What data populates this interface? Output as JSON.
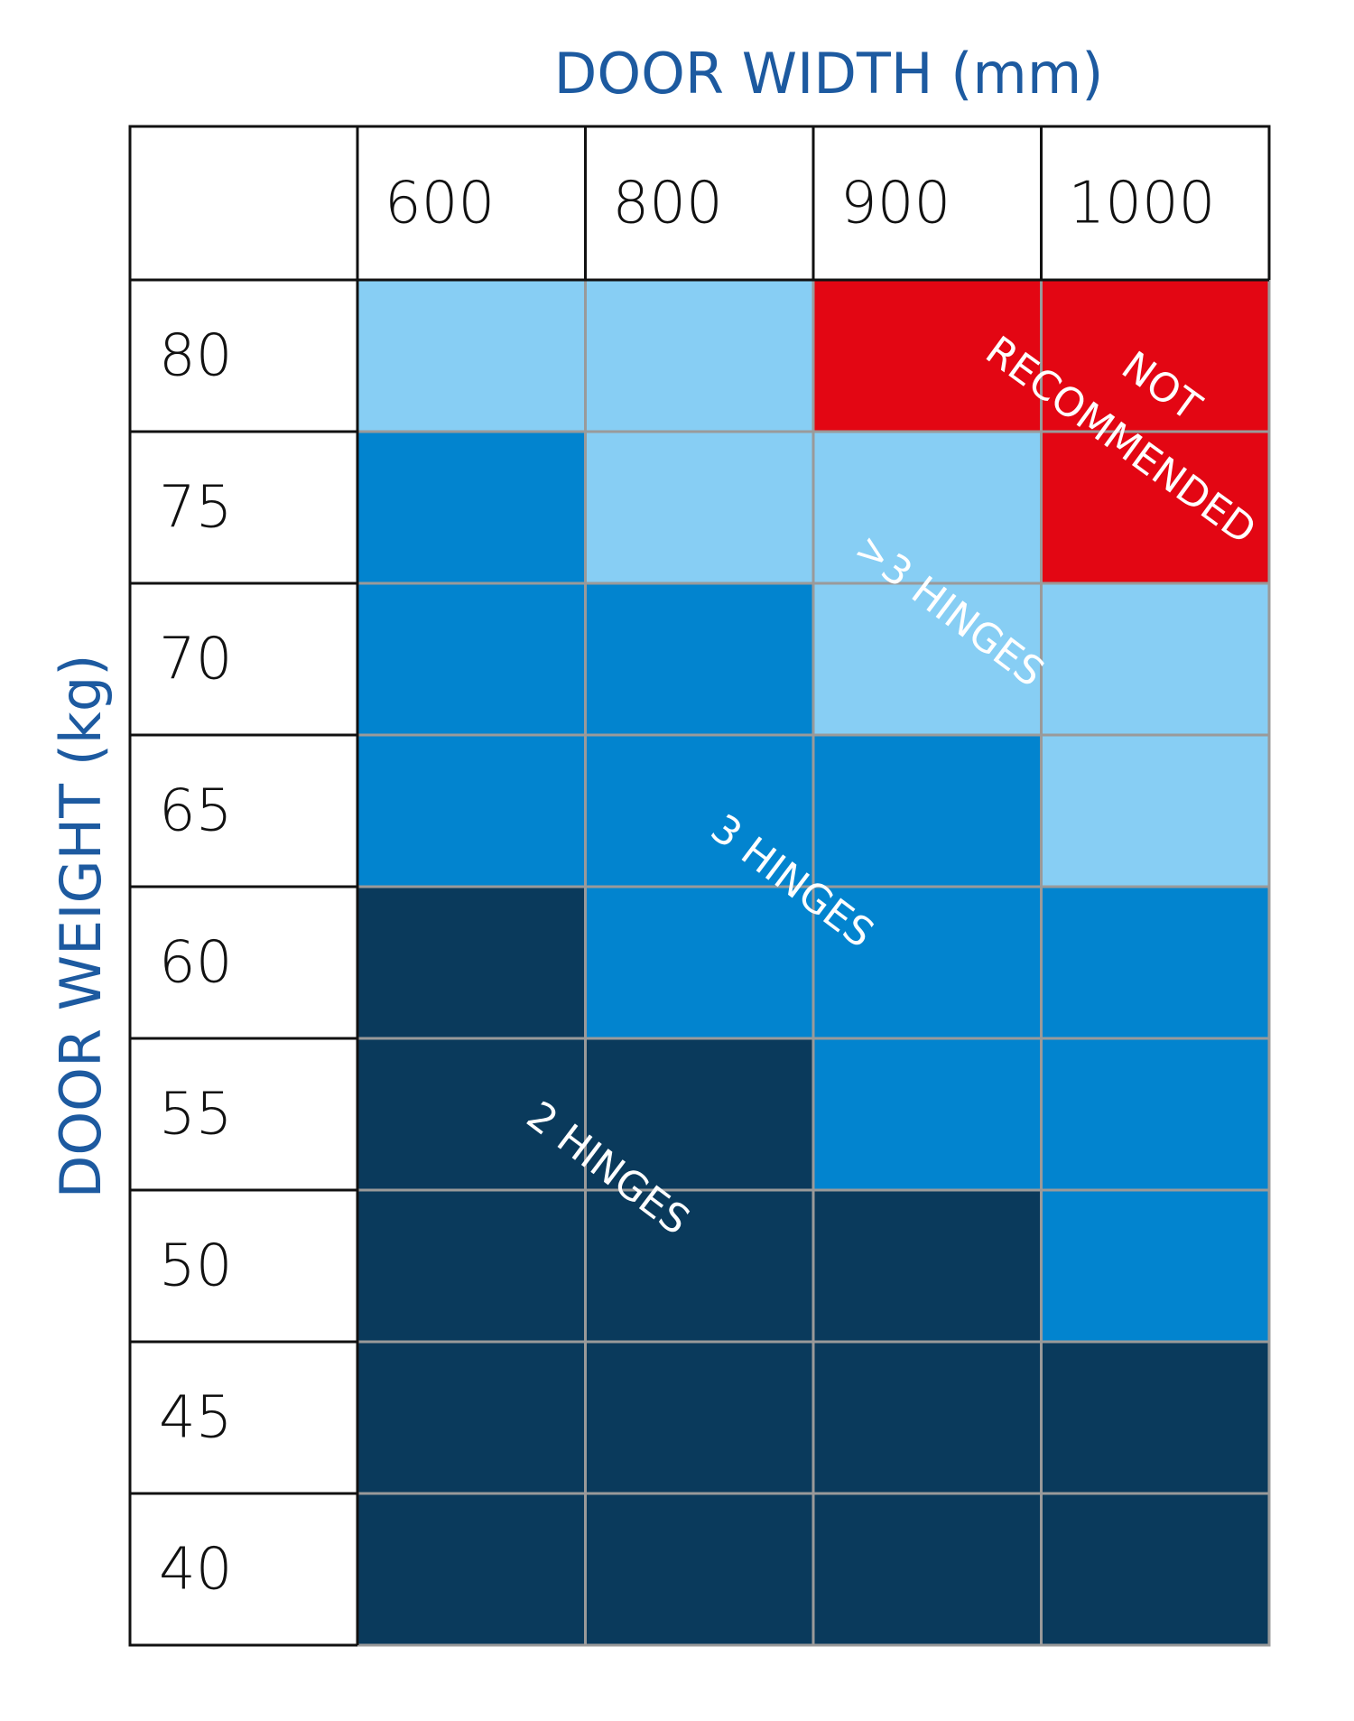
{
  "title_x": "DOOR WIDTH (mm)",
  "title_y": "DOOR WEIGHT (kg)",
  "columns": [
    "600",
    "800",
    "900",
    "1000"
  ],
  "rows": [
    {
      "label": "80",
      "colors": [
        "#87cef4",
        "#87cef4",
        "#e30613",
        "#e30613"
      ]
    },
    {
      "label": "75",
      "colors": [
        "#0284cf",
        "#87cef4",
        "#87cef4",
        "#e30613"
      ]
    },
    {
      "label": "70",
      "colors": [
        "#0284cf",
        "#0284cf",
        "#87cef4",
        "#87cef4"
      ]
    },
    {
      "label": "65",
      "colors": [
        "#0284cf",
        "#0284cf",
        "#0284cf",
        "#87cef4"
      ]
    },
    {
      "label": "60",
      "colors": [
        "#0a3a5c",
        "#0284cf",
        "#0284cf",
        "#0284cf"
      ]
    },
    {
      "label": "55",
      "colors": [
        "#0a3a5c",
        "#0a3a5c",
        "#0284cf",
        "#0284cf"
      ]
    },
    {
      "label": "50",
      "colors": [
        "#0a3a5c",
        "#0a3a5c",
        "#0a3a5c",
        "#0284cf"
      ]
    },
    {
      "label": "45",
      "colors": [
        "#0a3a5c",
        "#0a3a5c",
        "#0a3a5c",
        "#0a3a5c"
      ]
    },
    {
      "label": "40",
      "colors": [
        "#0a3a5c",
        "#0a3a5c",
        "#0a3a5c",
        "#0a3a5c"
      ]
    }
  ],
  "annotations": {
    "not_recommended": [
      "NOT",
      "RECOMMENDED"
    ],
    "more_than_3": ">3 HINGES",
    "three": "3 HINGES",
    "two": "2 HINGES"
  }
}
